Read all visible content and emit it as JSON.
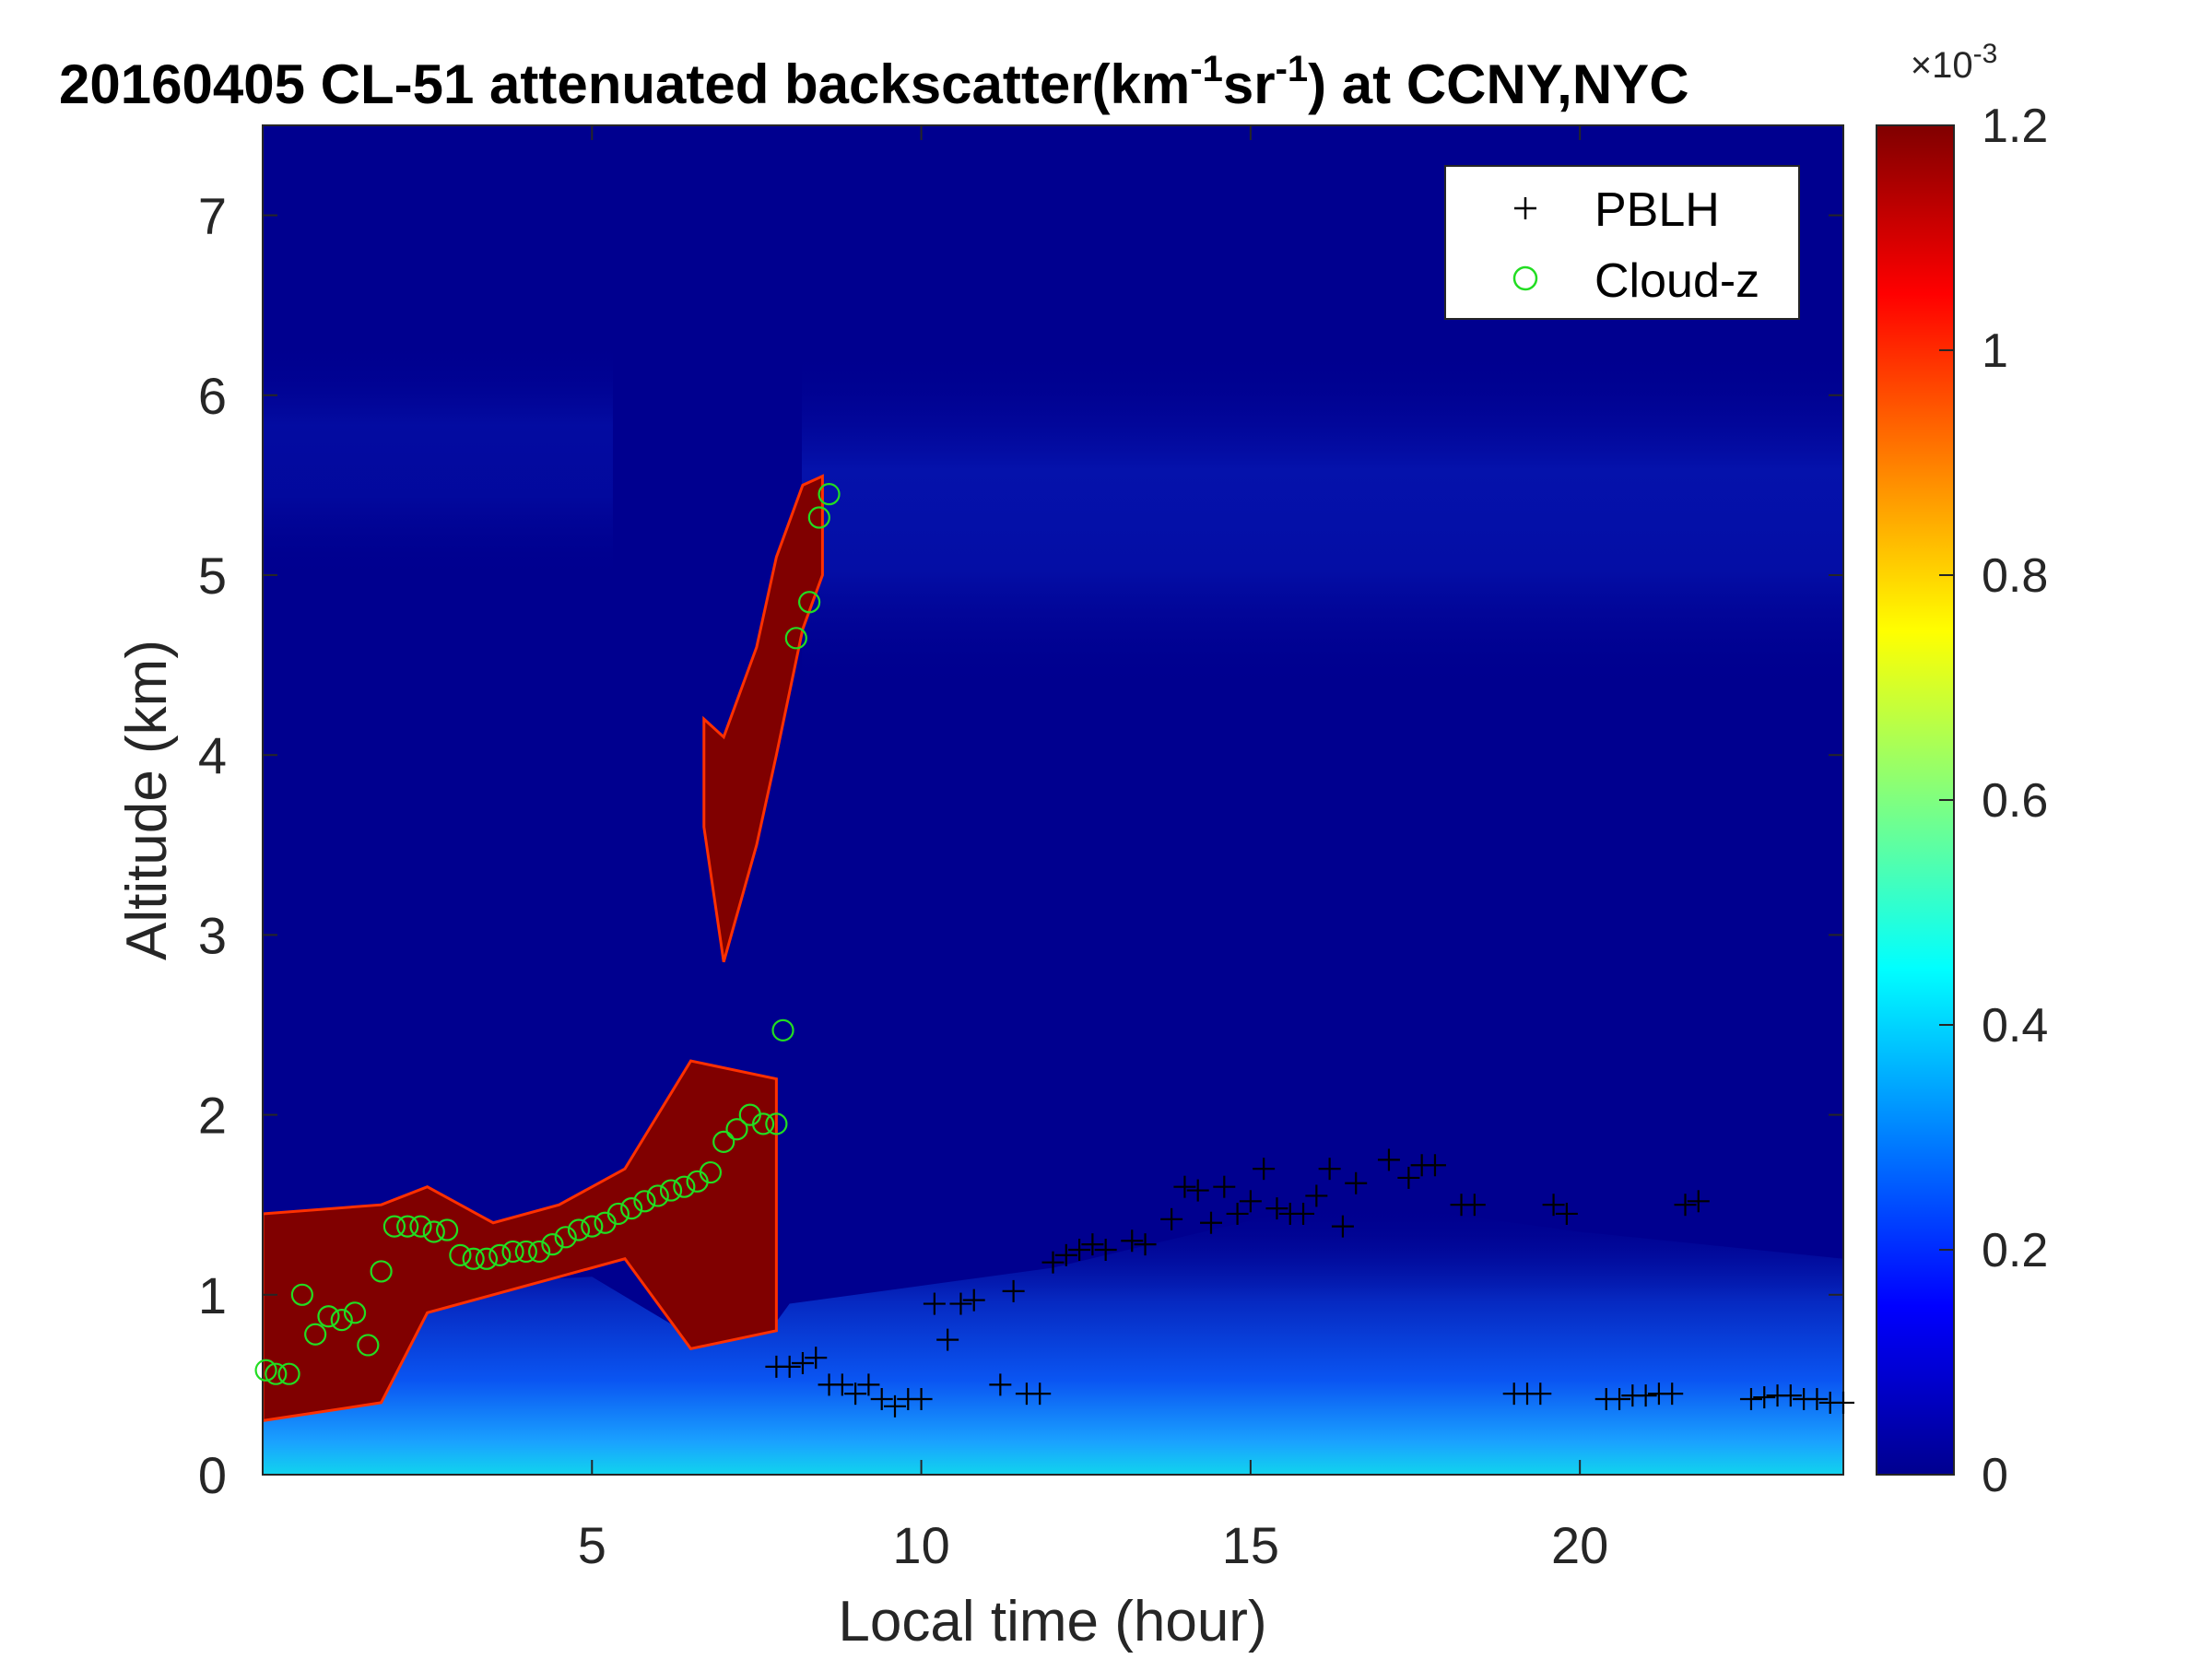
{
  "chart_data": {
    "type": "heatmap",
    "title": {
      "date": "20160405",
      "prefix": "CL-51 attenuated backscatter(km",
      "sup1": "-1",
      "mid": "sr",
      "sup2": "-1",
      "suffix": ") at CCNY,NYC"
    },
    "xlabel": "Local time (hour)",
    "ylabel": "Altitude (km)",
    "xlim": [
      0,
      24
    ],
    "ylim": [
      0,
      7.5
    ],
    "x_ticks": [
      5,
      10,
      15,
      20
    ],
    "y_ticks": [
      0,
      1,
      2,
      3,
      4,
      5,
      6,
      7
    ],
    "colormap": "jet",
    "colorbar": {
      "range": [
        0,
        1.2
      ],
      "ticks": [
        0,
        0.2,
        0.4,
        0.6,
        0.8,
        1,
        1.2
      ],
      "exponent_base": "×10",
      "exponent_power": "-3"
    },
    "grid": false,
    "legend": {
      "placement": "top-right",
      "entries": [
        {
          "label": "PBLH",
          "marker": "+",
          "color": "#000000"
        },
        {
          "label": "Cloud-z",
          "marker": "o",
          "color": "#22dd22"
        }
      ]
    },
    "cloud_layers": [
      {
        "t": [
          0.0,
          1.8,
          2.5,
          3.5,
          4.5,
          5.5,
          6.5,
          7.8
        ],
        "base": [
          0.3,
          0.4,
          0.9,
          1.0,
          1.1,
          1.2,
          0.7,
          0.8
        ],
        "top": [
          1.45,
          1.5,
          1.6,
          1.4,
          1.5,
          1.7,
          2.3,
          2.2
        ]
      },
      {
        "t": [
          6.7,
          7.0,
          7.5,
          7.8,
          8.2,
          8.5
        ],
        "base": [
          3.6,
          2.85,
          3.5,
          4.0,
          4.7,
          5.0
        ],
        "top": [
          4.2,
          4.1,
          4.6,
          5.1,
          5.5,
          5.55
        ]
      }
    ],
    "series": [
      {
        "name": "PBLH",
        "x": [
          7.8,
          8.0,
          8.2,
          8.4,
          8.6,
          8.8,
          9.0,
          9.2,
          9.4,
          9.6,
          9.8,
          10.0,
          10.2,
          10.4,
          10.6,
          10.8,
          11.2,
          11.4,
          11.6,
          11.8,
          12.0,
          12.2,
          12.4,
          12.6,
          12.8,
          13.2,
          13.4,
          13.8,
          14.0,
          14.2,
          14.4,
          14.6,
          14.8,
          15.0,
          15.2,
          15.4,
          15.6,
          15.8,
          16.0,
          16.2,
          16.4,
          16.6,
          17.1,
          17.4,
          17.6,
          17.8,
          18.2,
          18.4,
          19.0,
          19.2,
          19.4,
          19.6,
          19.8,
          20.4,
          20.6,
          20.8,
          21.0,
          21.2,
          21.4,
          21.6,
          21.8,
          22.6,
          22.8,
          23.0,
          23.2,
          23.4,
          23.6,
          23.8,
          24.0
        ],
        "y": [
          0.6,
          0.6,
          0.62,
          0.65,
          0.5,
          0.5,
          0.45,
          0.5,
          0.42,
          0.38,
          0.42,
          0.42,
          0.95,
          0.75,
          0.95,
          0.97,
          0.5,
          1.02,
          0.45,
          0.45,
          1.18,
          1.22,
          1.25,
          1.28,
          1.25,
          1.3,
          1.28,
          1.42,
          1.6,
          1.58,
          1.4,
          1.6,
          1.45,
          1.52,
          1.7,
          1.48,
          1.45,
          1.45,
          1.55,
          1.7,
          1.38,
          1.62,
          1.75,
          1.65,
          1.72,
          1.72,
          1.5,
          1.5,
          0.45,
          0.45,
          0.45,
          1.5,
          1.45,
          0.42,
          0.42,
          0.44,
          0.44,
          0.45,
          0.45,
          1.5,
          1.52,
          0.42,
          0.43,
          0.44,
          0.44,
          0.42,
          0.42,
          0.4,
          0.4
        ]
      },
      {
        "name": "Cloud-z",
        "x": [
          0.05,
          0.2,
          0.4,
          0.6,
          0.8,
          1.0,
          1.2,
          1.4,
          1.6,
          1.8,
          2.0,
          2.2,
          2.4,
          2.6,
          2.8,
          3.0,
          3.2,
          3.4,
          3.6,
          3.8,
          4.0,
          4.2,
          4.4,
          4.6,
          4.8,
          5.0,
          5.2,
          5.4,
          5.6,
          5.8,
          6.0,
          6.2,
          6.4,
          6.6,
          6.8,
          7.0,
          7.2,
          7.4,
          7.6,
          7.8,
          7.9,
          8.1,
          8.3,
          8.45,
          8.6
        ],
        "y": [
          0.58,
          0.56,
          0.56,
          1.0,
          0.78,
          0.88,
          0.86,
          0.9,
          0.72,
          1.13,
          1.38,
          1.38,
          1.38,
          1.35,
          1.36,
          1.22,
          1.2,
          1.2,
          1.22,
          1.24,
          1.24,
          1.24,
          1.28,
          1.32,
          1.36,
          1.38,
          1.4,
          1.45,
          1.48,
          1.52,
          1.55,
          1.58,
          1.6,
          1.63,
          1.68,
          1.85,
          1.92,
          2.0,
          1.95,
          1.95,
          2.47,
          4.65,
          4.85,
          5.32,
          5.45
        ]
      }
    ]
  }
}
